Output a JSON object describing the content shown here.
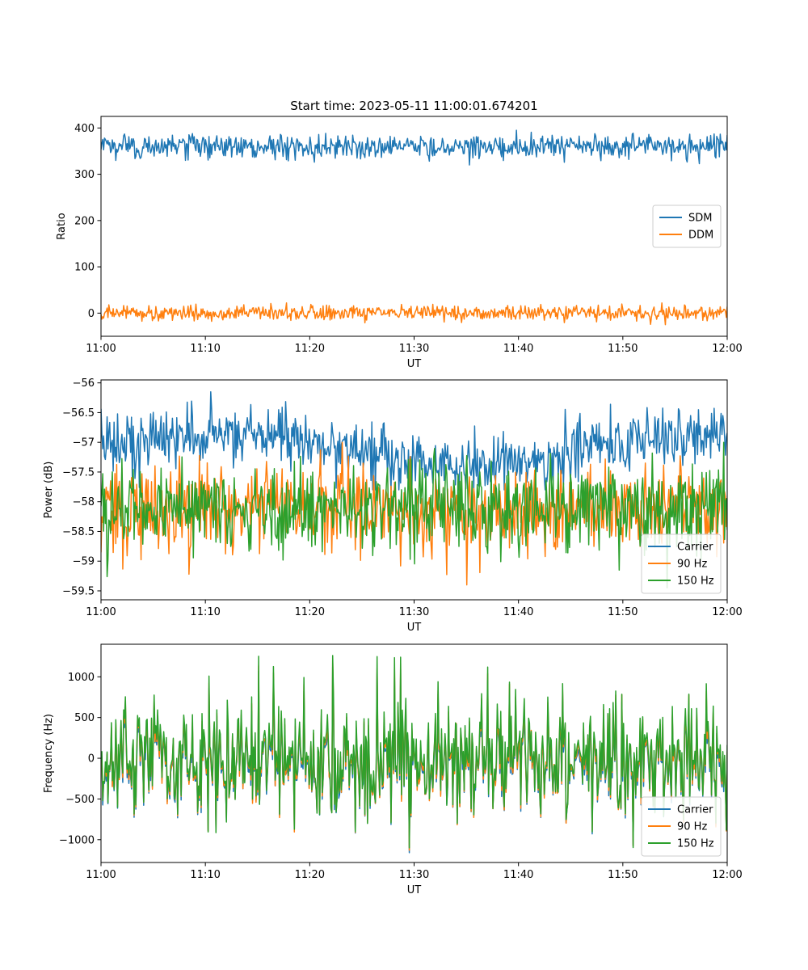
{
  "figure": {
    "title": "Start time: 2023-05-11 11:00:01.674201"
  },
  "colors": {
    "blue": "#1f77b4",
    "orange": "#ff7f0e",
    "green": "#2ca02c"
  },
  "chart_data": [
    {
      "type": "line",
      "title": "Start time: 2023-05-11 11:00:01.674201",
      "xlabel": "UT",
      "ylabel": "Ratio",
      "xlim": [
        "11:00",
        "12:00"
      ],
      "ylim": [
        -50,
        425
      ],
      "xticks": [
        "11:00",
        "11:10",
        "11:20",
        "11:30",
        "11:40",
        "11:50",
        "12:00"
      ],
      "yticks": [
        0,
        100,
        200,
        300,
        400
      ],
      "legend_position": "center-right",
      "grid": false,
      "series": [
        {
          "name": "SDM",
          "color": "#1f77b4",
          "mean": 360,
          "noise_range": [
            320,
            405
          ]
        },
        {
          "name": "DDM",
          "color": "#ff7f0e",
          "mean": 0,
          "noise_range": [
            -30,
            22
          ]
        }
      ]
    },
    {
      "type": "line",
      "title": "",
      "xlabel": "UT",
      "ylabel": "Power (dB)",
      "xlim": [
        "11:00",
        "12:00"
      ],
      "ylim": [
        -59.65,
        -55.95
      ],
      "xticks": [
        "11:00",
        "11:10",
        "11:20",
        "11:30",
        "11:40",
        "11:50",
        "12:00"
      ],
      "yticks": [
        -59.5,
        -59.0,
        -58.5,
        -58.0,
        -57.5,
        -57.0,
        -56.5,
        -56.0
      ],
      "legend_position": "lower-right",
      "grid": false,
      "series": [
        {
          "name": "Carrier",
          "color": "#1f77b4",
          "mean": -57.1,
          "noise_range": [
            -57.8,
            -56.15
          ]
        },
        {
          "name": "90 Hz",
          "color": "#ff7f0e",
          "mean": -58.1,
          "noise_range": [
            -59.4,
            -57.0
          ]
        },
        {
          "name": "150 Hz",
          "color": "#2ca02c",
          "mean": -58.1,
          "noise_range": [
            -59.45,
            -57.0
          ]
        }
      ]
    },
    {
      "type": "line",
      "title": "",
      "xlabel": "UT",
      "ylabel": "Frequency (Hz)",
      "xlim": [
        "11:00",
        "12:00"
      ],
      "ylim": [
        -1280,
        1400
      ],
      "xticks": [
        "11:00",
        "11:10",
        "11:20",
        "11:30",
        "11:40",
        "11:50",
        "12:00"
      ],
      "yticks": [
        -1000,
        -500,
        0,
        500,
        1000
      ],
      "legend_position": "lower-right",
      "grid": false,
      "series": [
        {
          "name": "Carrier",
          "color": "#1f77b4",
          "mean": -60,
          "noise_range": [
            -1160,
            1200
          ]
        },
        {
          "name": "90 Hz",
          "color": "#ff7f0e",
          "mean": -20,
          "noise_range": [
            -1130,
            1250
          ]
        },
        {
          "name": "150 Hz",
          "color": "#2ca02c",
          "mean": 20,
          "noise_range": [
            -1100,
            1290
          ]
        }
      ]
    }
  ]
}
